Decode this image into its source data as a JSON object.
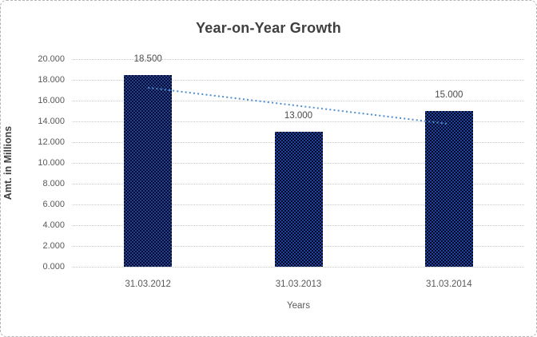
{
  "window": {
    "background": "#ffffff",
    "border_color": "#b3b3b3"
  },
  "chart_data": {
    "type": "bar",
    "title": "Year-on-Year Growth",
    "xlabel": "Years",
    "ylabel": "Amt. in Millions",
    "categories": [
      "31.03.2012",
      "31.03.2013",
      "31.03.2014"
    ],
    "values": [
      18.5,
      13.0,
      15.0
    ],
    "value_labels": [
      "18.500",
      "13.000",
      "15.000"
    ],
    "ylim": [
      0,
      20
    ],
    "ytick_step": 2,
    "ytick_labels": [
      "0.000",
      "2.000",
      "4.000",
      "6.000",
      "8.000",
      "10.000",
      "12.000",
      "14.000",
      "16.000",
      "18.000",
      "20.000"
    ],
    "grid": true,
    "gridline_style": "dotted",
    "legend": "none",
    "trendline": {
      "type": "linear",
      "style": "dotted",
      "color": "#4e8fd3",
      "values_at_categories": [
        17.25,
        15.5,
        13.75
      ]
    },
    "colors": {
      "bar_base": "#2040a0",
      "bar_pattern": "#060b20",
      "gridline": "#c9c9c9",
      "tick_label": "#595959",
      "data_label": "#4a4a4a",
      "title": "#3f3f3f",
      "axis_title": "#404040"
    }
  }
}
